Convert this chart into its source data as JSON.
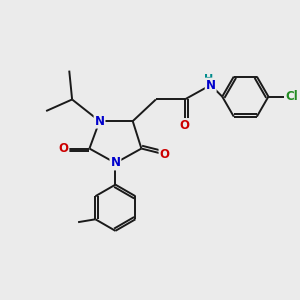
{
  "background_color": "#ebebeb",
  "bond_color": "#1a1a1a",
  "atom_colors": {
    "N": "#0000cc",
    "O": "#cc0000",
    "Cl": "#228b22",
    "H": "#008b8b",
    "C": "#1a1a1a"
  },
  "figsize": [
    3.0,
    3.0
  ],
  "dpi": 100
}
